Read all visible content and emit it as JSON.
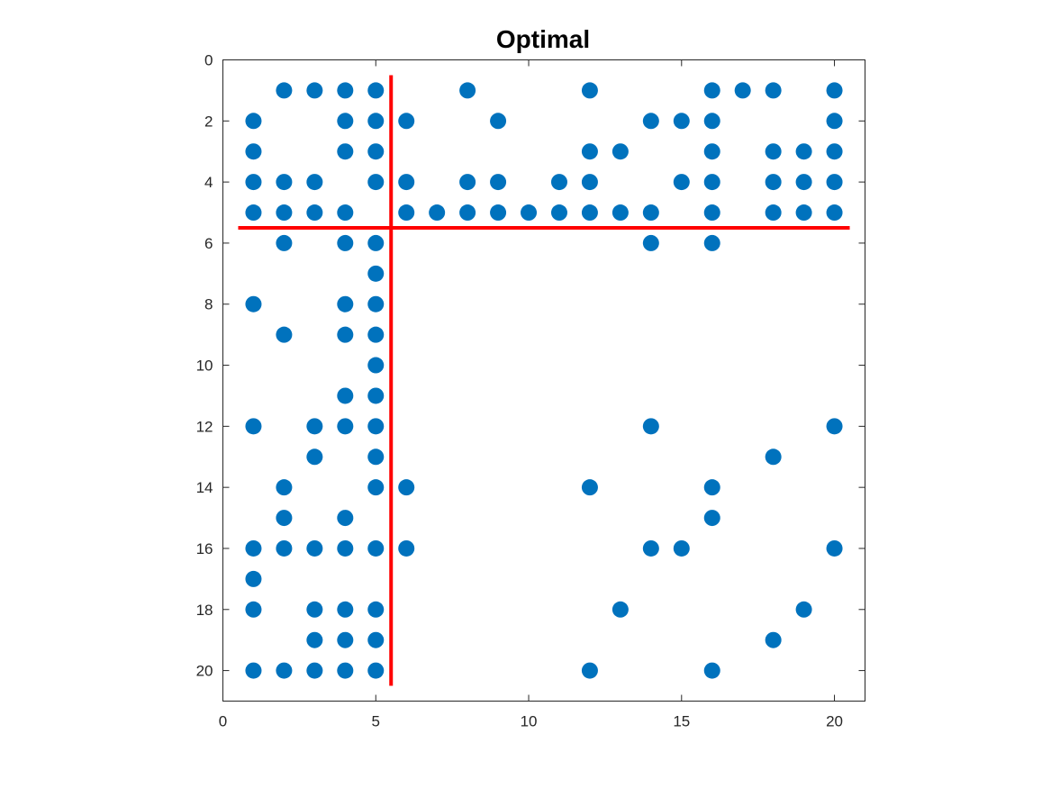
{
  "chart_data": {
    "type": "scatter",
    "title": "Optimal",
    "xlabel": "",
    "ylabel": "",
    "xlim": [
      0,
      21
    ],
    "ylim": [
      0,
      21
    ],
    "y_reversed": true,
    "grid": false,
    "legend": "none",
    "x_ticks": [
      0,
      5,
      10,
      15,
      20
    ],
    "y_ticks": [
      0,
      2,
      4,
      6,
      8,
      10,
      12,
      14,
      16,
      18,
      20
    ],
    "marker_color": "#0072BD",
    "line_color": "#FF0000",
    "series": [
      {
        "points": [
          [
            2,
            1
          ],
          [
            3,
            1
          ],
          [
            4,
            1
          ],
          [
            5,
            1
          ],
          [
            8,
            1
          ],
          [
            12,
            1
          ],
          [
            16,
            1
          ],
          [
            17,
            1
          ],
          [
            18,
            1
          ],
          [
            20,
            1
          ],
          [
            1,
            2
          ],
          [
            4,
            2
          ],
          [
            5,
            2
          ],
          [
            6,
            2
          ],
          [
            9,
            2
          ],
          [
            14,
            2
          ],
          [
            15,
            2
          ],
          [
            16,
            2
          ],
          [
            20,
            2
          ],
          [
            1,
            3
          ],
          [
            4,
            3
          ],
          [
            5,
            3
          ],
          [
            12,
            3
          ],
          [
            13,
            3
          ],
          [
            16,
            3
          ],
          [
            18,
            3
          ],
          [
            19,
            3
          ],
          [
            20,
            3
          ],
          [
            1,
            4
          ],
          [
            2,
            4
          ],
          [
            3,
            4
          ],
          [
            5,
            4
          ],
          [
            6,
            4
          ],
          [
            8,
            4
          ],
          [
            9,
            4
          ],
          [
            11,
            4
          ],
          [
            12,
            4
          ],
          [
            15,
            4
          ],
          [
            16,
            4
          ],
          [
            18,
            4
          ],
          [
            19,
            4
          ],
          [
            20,
            4
          ],
          [
            1,
            5
          ],
          [
            2,
            5
          ],
          [
            3,
            5
          ],
          [
            4,
            5
          ],
          [
            6,
            5
          ],
          [
            7,
            5
          ],
          [
            8,
            5
          ],
          [
            9,
            5
          ],
          [
            10,
            5
          ],
          [
            11,
            5
          ],
          [
            12,
            5
          ],
          [
            13,
            5
          ],
          [
            14,
            5
          ],
          [
            16,
            5
          ],
          [
            18,
            5
          ],
          [
            19,
            5
          ],
          [
            20,
            5
          ],
          [
            2,
            6
          ],
          [
            4,
            6
          ],
          [
            5,
            6
          ],
          [
            14,
            6
          ],
          [
            16,
            6
          ],
          [
            5,
            7
          ],
          [
            1,
            8
          ],
          [
            4,
            8
          ],
          [
            5,
            8
          ],
          [
            2,
            9
          ],
          [
            4,
            9
          ],
          [
            5,
            9
          ],
          [
            5,
            10
          ],
          [
            4,
            11
          ],
          [
            5,
            11
          ],
          [
            1,
            12
          ],
          [
            3,
            12
          ],
          [
            4,
            12
          ],
          [
            5,
            12
          ],
          [
            14,
            12
          ],
          [
            20,
            12
          ],
          [
            3,
            13
          ],
          [
            5,
            13
          ],
          [
            18,
            13
          ],
          [
            2,
            14
          ],
          [
            5,
            14
          ],
          [
            6,
            14
          ],
          [
            12,
            14
          ],
          [
            16,
            14
          ],
          [
            2,
            15
          ],
          [
            4,
            15
          ],
          [
            16,
            15
          ],
          [
            1,
            16
          ],
          [
            2,
            16
          ],
          [
            3,
            16
          ],
          [
            4,
            16
          ],
          [
            5,
            16
          ],
          [
            6,
            16
          ],
          [
            14,
            16
          ],
          [
            15,
            16
          ],
          [
            20,
            16
          ],
          [
            1,
            17
          ],
          [
            1,
            18
          ],
          [
            3,
            18
          ],
          [
            4,
            18
          ],
          [
            5,
            18
          ],
          [
            13,
            18
          ],
          [
            19,
            18
          ],
          [
            3,
            19
          ],
          [
            4,
            19
          ],
          [
            5,
            19
          ],
          [
            18,
            19
          ],
          [
            1,
            20
          ],
          [
            2,
            20
          ],
          [
            3,
            20
          ],
          [
            4,
            20
          ],
          [
            5,
            20
          ],
          [
            12,
            20
          ],
          [
            16,
            20
          ]
        ]
      }
    ],
    "lines": [
      {
        "x": [
          5.5,
          5.5
        ],
        "y": [
          0.5,
          20.5
        ]
      },
      {
        "x": [
          0.5,
          20.5
        ],
        "y": [
          5.5,
          5.5
        ]
      }
    ]
  }
}
